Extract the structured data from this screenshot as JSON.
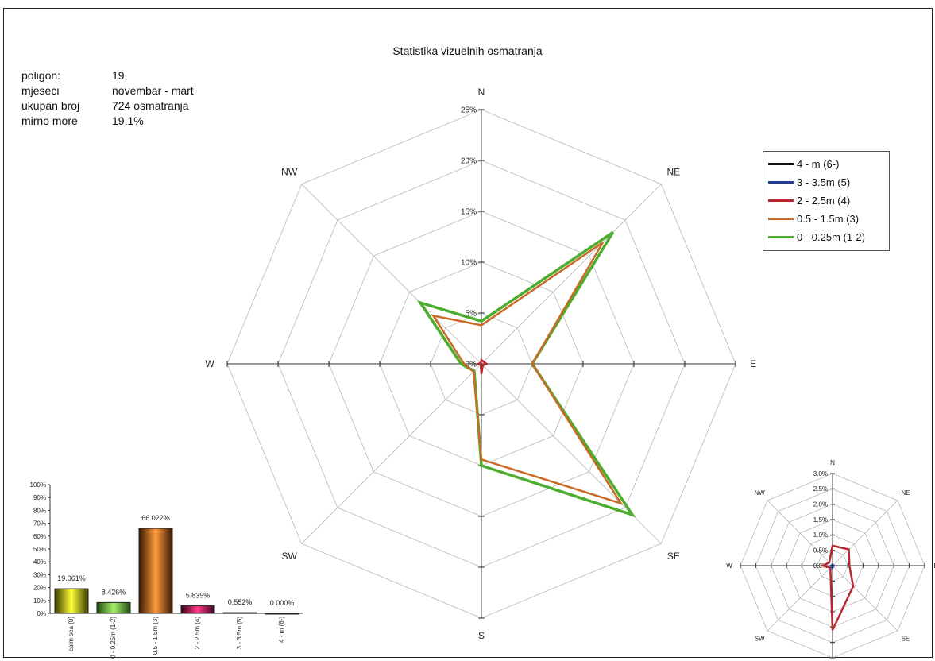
{
  "title": "Statistika vizuelnih osmatranja",
  "info": [
    {
      "key": "poligon:",
      "value": "19"
    },
    {
      "key": "mjeseci",
      "value": "novembar - mart"
    },
    {
      "key": "ukupan broj",
      "value": "724 osmatranja"
    },
    {
      "key": "mirno more",
      "value": "19.1%"
    }
  ],
  "colors": {
    "s1": "#111111",
    "s2": "#1f3f9a",
    "s3": "#b5292e",
    "s4": "#c96a26",
    "s5": "#4cad2f",
    "grid": "#b8b8b8",
    "axis": "#333333"
  },
  "chart_data": [
    {
      "type": "radar",
      "directions": [
        "N",
        "NE",
        "E",
        "SE",
        "S",
        "SW",
        "W",
        "NW"
      ],
      "rlim": [
        0,
        25
      ],
      "tick_labels": [
        "0%",
        "5%",
        "10%",
        "15%",
        "20%",
        "25%"
      ],
      "legend_position": "right",
      "series": [
        {
          "name": "4 - m (6-)",
          "values": [
            0,
            0,
            0,
            0,
            0,
            0,
            0,
            0
          ]
        },
        {
          "name": "3 - 3.5m (5)",
          "values": [
            0,
            0,
            0,
            0,
            0,
            0,
            0,
            0
          ]
        },
        {
          "name": "2 - 2.5m (4)",
          "values": [
            0.4,
            0.3,
            0.5,
            0.2,
            1.0,
            0.1,
            0.3,
            0.1
          ]
        },
        {
          "name": "0.5 - 1.5m (3)",
          "values": [
            3.8,
            16.9,
            5.0,
            19.4,
            9.4,
            1.1,
            1.7,
            6.7
          ]
        },
        {
          "name": "0 - 0.25m (1-2)",
          "values": [
            4.2,
            18.3,
            5.0,
            21.0,
            10.0,
            1.0,
            2.0,
            8.5
          ]
        }
      ]
    },
    {
      "type": "bar",
      "categories": [
        "calm sea (0)",
        "0 - 0.25m (1-2)",
        "0.5 - 1.5m (3)",
        "2 - 2.5m (4)",
        "3 - 3.5m (5)",
        "4 - m (6-)"
      ],
      "values": [
        19.061,
        8.426,
        66.022,
        5.839,
        0.552,
        0.0
      ],
      "data_labels": [
        "19.061%",
        "8.426%",
        "66.022%",
        "5.839%",
        "0.552%",
        "0.000%"
      ],
      "ylim": [
        0,
        100
      ],
      "tick_labels": [
        "0%",
        "10%",
        "20%",
        "30%",
        "40%",
        "50%",
        "60%",
        "70%",
        "80%",
        "90%",
        "100%"
      ]
    },
    {
      "type": "radar",
      "directions": [
        "N",
        "NE",
        "E",
        "SE",
        "S",
        "SW",
        "W",
        "NW"
      ],
      "rlim": [
        0,
        3.0
      ],
      "tick_labels": [
        "0.0%",
        "0.5%",
        "1.0%",
        "1.5%",
        "2.0%",
        "2.5%",
        "3.0%"
      ],
      "series": [
        {
          "name": "4 - m (6-)",
          "values": [
            0.02,
            0.02,
            0.02,
            0.02,
            0.02,
            0.02,
            0.02,
            0.02
          ]
        },
        {
          "name": "3 - 3.5m (5)",
          "values": [
            0.05,
            0.03,
            0.05,
            0.03,
            0.1,
            0.05,
            0.05,
            0.03
          ]
        },
        {
          "name": "2 - 2.5m (4)",
          "values": [
            0.65,
            0.75,
            0.55,
            0.95,
            2.1,
            0.1,
            0.3,
            0.15
          ]
        }
      ]
    }
  ]
}
